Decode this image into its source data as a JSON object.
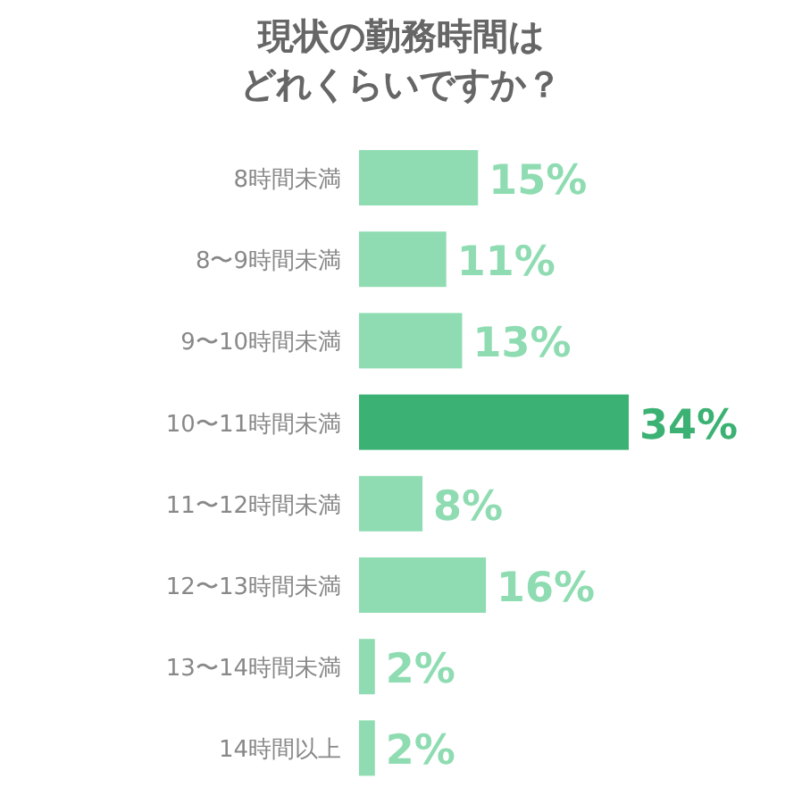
{
  "chart_data": {
    "type": "bar",
    "orientation": "horizontal",
    "title": "現状の勤務時間は",
    "subtitle": "どれくらいですか？",
    "categories": [
      "8時間未満",
      "8〜9時間未満",
      "9〜10時間未満",
      "10〜11時間未満",
      "11〜12時間未満",
      "12〜13時間未満",
      "13〜14時間未満",
      "14時間以上"
    ],
    "values": [
      15,
      11,
      13,
      34,
      8,
      16,
      2,
      2
    ],
    "colors": [
      "#8fdcb2",
      "#8fdcb2",
      "#8fdcb2",
      "#3bb273",
      "#8fdcb2",
      "#8fdcb2",
      "#8fdcb2",
      "#8fdcb2"
    ],
    "value_labels": [
      "15%",
      "11%",
      "13%",
      "34%",
      "8%",
      "16%",
      "2%",
      "2%"
    ]
  }
}
